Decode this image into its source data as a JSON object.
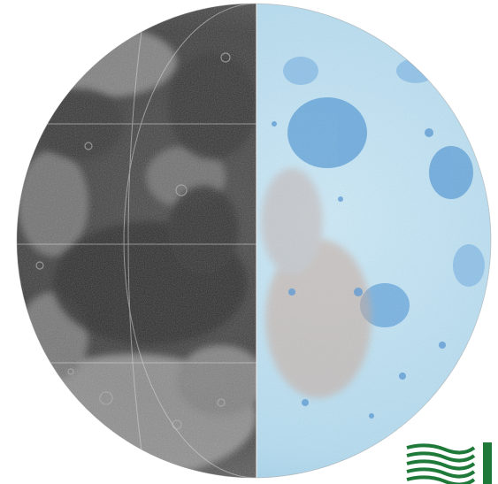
{
  "image": {
    "subject": "moon-hemisphere-split-view",
    "left_half": "grayscale-albedo-mosaic",
    "right_half": "blue-shaded-relief-map",
    "colors": {
      "background": "#ffffff",
      "mare_dark": "#2e2e2e",
      "highland_gray": "#8a8a8a",
      "relief_light": "#bfe2f3",
      "relief_basin": "#6aa8dc",
      "graticule": "#d8d8d8",
      "logo_green": "#1f7a3a"
    }
  },
  "logo": {
    "icon": "institution-wave-logo-icon"
  }
}
